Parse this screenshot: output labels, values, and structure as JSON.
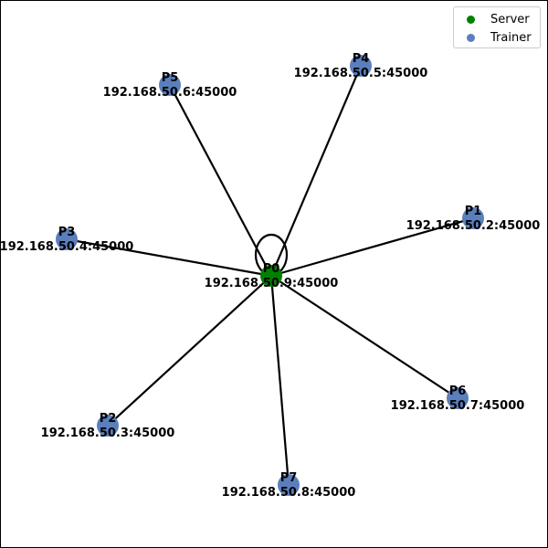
{
  "colors": {
    "server": "#008000",
    "trainer": "#5b7fbc",
    "edge": "#000000"
  },
  "legend": {
    "placement": "top-right",
    "items": [
      {
        "label": "Server",
        "role": "server"
      },
      {
        "label": "Trainer",
        "role": "trainer"
      }
    ]
  },
  "nodes": [
    {
      "id": "P0",
      "role": "server",
      "address": "192.168.50.9:45000"
    },
    {
      "id": "P1",
      "role": "trainer",
      "address": "192.168.50.2:45000"
    },
    {
      "id": "P2",
      "role": "trainer",
      "address": "192.168.50.3:45000"
    },
    {
      "id": "P3",
      "role": "trainer",
      "address": "192.168.50.4:45000"
    },
    {
      "id": "P4",
      "role": "trainer",
      "address": "192.168.50.5:45000"
    },
    {
      "id": "P5",
      "role": "trainer",
      "address": "192.168.50.6:45000"
    },
    {
      "id": "P6",
      "role": "trainer",
      "address": "192.168.50.7:45000"
    },
    {
      "id": "P7",
      "role": "trainer",
      "address": "192.168.50.8:45000"
    }
  ],
  "edges": [
    [
      "P0",
      "P0"
    ],
    [
      "P0",
      "P1"
    ],
    [
      "P0",
      "P2"
    ],
    [
      "P0",
      "P3"
    ],
    [
      "P0",
      "P4"
    ],
    [
      "P0",
      "P5"
    ],
    [
      "P0",
      "P6"
    ],
    [
      "P0",
      "P7"
    ]
  ]
}
